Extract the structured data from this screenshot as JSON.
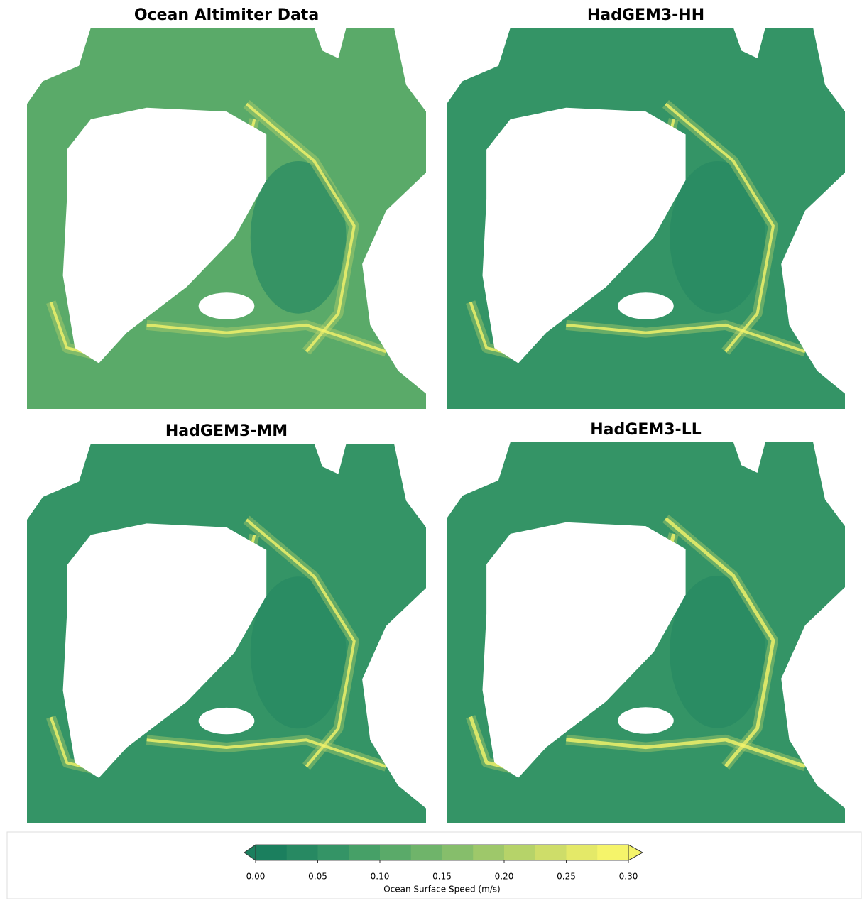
{
  "panels": [
    {
      "title": "Ocean Altimiter Data"
    },
    {
      "title": "HadGEM3-HH"
    },
    {
      "title": "HadGEM3-MM"
    },
    {
      "title": "HadGEM3-LL"
    }
  ],
  "colorbar": {
    "label": "Ocean Surface Speed (m/s)",
    "lim": [
      0,
      0.3
    ],
    "ticks": [
      {
        "value": 0,
        "label": "0.00"
      },
      {
        "value": 0.05,
        "label": "0.05"
      },
      {
        "value": 0.1,
        "label": "0.10"
      },
      {
        "value": 0.15,
        "label": "0.15"
      },
      {
        "value": 0.2,
        "label": "0.20"
      },
      {
        "value": 0.25,
        "label": "0.25"
      },
      {
        "value": 0.3,
        "label": "0.30"
      }
    ],
    "colors": [
      "#1b7f5e",
      "#278962",
      "#349466",
      "#46a067",
      "#5aaa69",
      "#6fb46a",
      "#86be6b",
      "#9ec86a",
      "#b6d369",
      "#cedd69",
      "#e4e968",
      "#f5f46a"
    ],
    "extend": "both"
  }
}
